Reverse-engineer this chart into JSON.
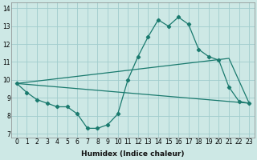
{
  "title": "",
  "xlabel": "Humidex (Indice chaleur)",
  "xlim": [
    -0.5,
    23.5
  ],
  "ylim": [
    6.8,
    14.3
  ],
  "xticks": [
    0,
    1,
    2,
    3,
    4,
    5,
    6,
    7,
    8,
    9,
    10,
    11,
    12,
    13,
    14,
    15,
    16,
    17,
    18,
    19,
    20,
    21,
    22,
    23
  ],
  "yticks": [
    7,
    8,
    9,
    10,
    11,
    12,
    13,
    14
  ],
  "background_color": "#cde8e5",
  "grid_color": "#a0cccc",
  "line_color": "#1a7a6e",
  "line1_x": [
    0,
    1,
    2,
    3,
    4,
    5,
    6,
    7,
    8,
    9,
    10,
    11,
    12,
    13,
    14,
    15,
    16,
    17,
    18,
    19,
    20,
    21,
    22,
    23
  ],
  "line1_y": [
    9.8,
    9.3,
    8.9,
    8.7,
    8.5,
    8.5,
    8.1,
    7.3,
    7.3,
    7.5,
    8.1,
    10.0,
    11.3,
    12.4,
    13.35,
    13.0,
    13.5,
    13.1,
    11.7,
    11.3,
    11.1,
    9.6,
    8.8,
    8.7
  ],
  "line2_x": [
    0,
    23
  ],
  "line2_y": [
    9.8,
    8.7
  ],
  "line3_x": [
    0,
    21,
    23
  ],
  "line3_y": [
    9.8,
    11.2,
    8.7
  ],
  "xlabel_fontsize": 6.5,
  "tick_fontsize": 5.5
}
